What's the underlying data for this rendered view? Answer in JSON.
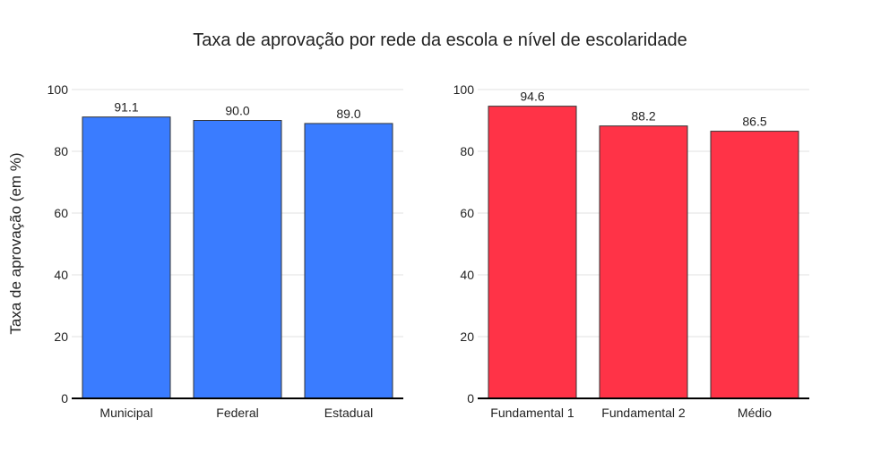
{
  "chart_data": {
    "title": "Taxa de aprovação por rede da escola e nível de escolaridade",
    "ylabel": "Taxa de aprovação (em %)",
    "panels": [
      {
        "type": "bar",
        "categories": [
          "Municipal",
          "Federal",
          "Estadual"
        ],
        "values": [
          91.1,
          90.0,
          89.0
        ],
        "value_labels": [
          "91.1",
          "90.0",
          "89.0"
        ],
        "color": "#3a7cff",
        "ylim": [
          0,
          100
        ],
        "yticks": [
          "0",
          "20",
          "40",
          "60",
          "80",
          "100"
        ],
        "grid": true
      },
      {
        "type": "bar",
        "categories": [
          "Fundamental 1",
          "Fundamental 2",
          "Médio"
        ],
        "values": [
          94.6,
          88.2,
          86.5
        ],
        "value_labels": [
          "94.6",
          "88.2",
          "86.5"
        ],
        "color": "#ff3347",
        "ylim": [
          0,
          100
        ],
        "yticks": [
          "0",
          "20",
          "40",
          "60",
          "80",
          "100"
        ],
        "grid": true
      }
    ]
  }
}
